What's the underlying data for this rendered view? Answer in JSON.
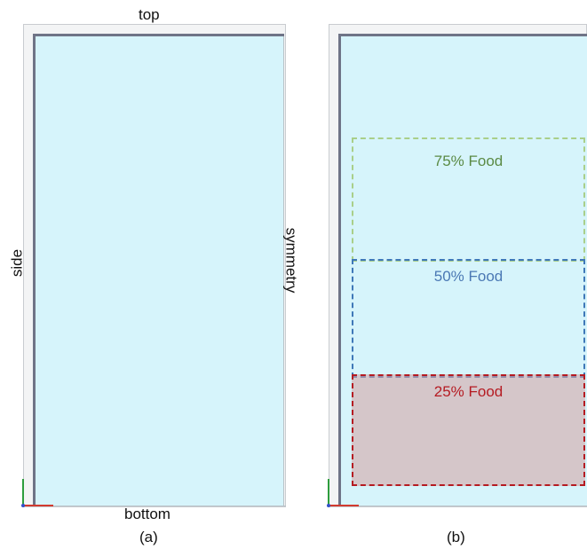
{
  "panel_a": {
    "label_top": "top",
    "label_side": "side",
    "label_symmetry": "symmetry",
    "label_bottom": "bottom",
    "caption": "(a)"
  },
  "panel_b": {
    "caption": "(b)",
    "regions": [
      {
        "label": "75% Food",
        "color": "#5a8a44"
      },
      {
        "label": "50% Food",
        "color": "#4a78b4"
      },
      {
        "label": "25% Food",
        "color": "#b51b22"
      }
    ]
  },
  "colors": {
    "fluid_domain": "#d6f4fb",
    "wall": "#6f7487"
  }
}
